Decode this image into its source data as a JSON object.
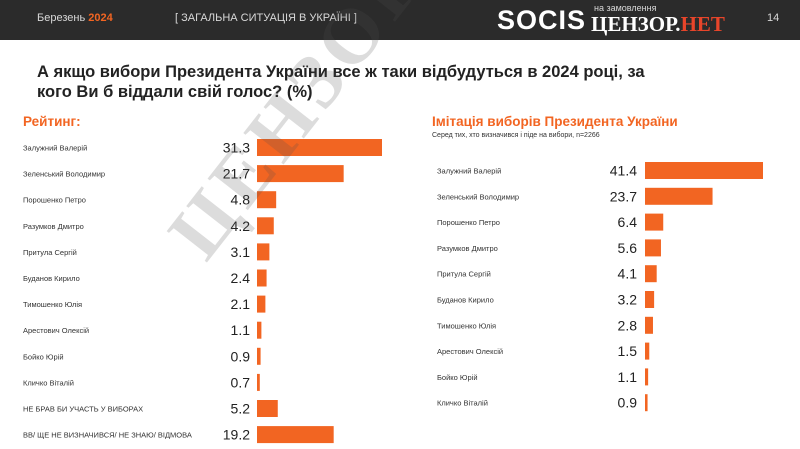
{
  "header": {
    "date_month": "Березень",
    "date_year": "2024",
    "section": "[ ЗАГАЛЬНА СИТУАЦІЯ В УКРАЇНІ ]",
    "brand": "SOCIS",
    "commission_text": "на замовлення",
    "client_main": "ЦЕНЗОР.",
    "client_accent": "НЕТ",
    "page_number": "14"
  },
  "question": "А якщо вибори Президента України все ж таки відбудуться в 2024 році, за кого Ви б віддали свій голос? (%)",
  "watermark": "ЦЕНЗОР.НЕТ",
  "colors": {
    "bar": "#f26522",
    "accent": "#f26522",
    "header_bg": "#2b2b2b"
  },
  "chart_data": [
    {
      "type": "bar",
      "orientation": "horizontal",
      "title": "Рейтинг:",
      "subtitle": "",
      "categories": [
        "Залужний Валерій",
        "Зеленський Володимир",
        "Порошенко Петро",
        "Разумков Дмитро",
        "Притула Сергій",
        "Буданов Кирило",
        "Тимошенко Юлія",
        "Арестович Олексій",
        "Бойко Юрій",
        "Кличко Віталій",
        "НЕ БРАВ БИ УЧАСТЬ У ВИБОРАХ",
        "ВВ/ ЩЕ НЕ ВИЗНАЧИВСЯ/ НЕ ЗНАЮ/ ВІДМОВА"
      ],
      "values": [
        31.3,
        21.7,
        4.8,
        4.2,
        3.1,
        2.4,
        2.1,
        1.1,
        0.9,
        0.7,
        5.2,
        19.2
      ],
      "value_labels": [
        "31.3",
        "21.7",
        "4.8",
        "4.2",
        "3.1",
        "2.4",
        "2.1",
        "1.1",
        "0.9",
        "0.7",
        "5.2",
        "19.2"
      ],
      "xlim": [
        0,
        31.3
      ],
      "grid": false,
      "data_labels": true
    },
    {
      "type": "bar",
      "orientation": "horizontal",
      "title": "Імітація виборів Президента України",
      "subtitle": "Серед тих, хто визначився і піде на вибори, n=2266",
      "categories": [
        "Залужний Валерій",
        "Зеленський Володимир",
        "Порошенко Петро",
        "Разумков Дмитро",
        "Притула Сергій",
        "Буданов Кирило",
        "Тимошенко Юлія",
        "Арестович Олексій",
        "Бойко Юрій",
        "Кличко Віталій"
      ],
      "values": [
        41.4,
        23.7,
        6.4,
        5.6,
        4.1,
        3.2,
        2.8,
        1.5,
        1.1,
        0.9
      ],
      "value_labels": [
        "41.4",
        "23.7",
        "6.4",
        "5.6",
        "4.1",
        "3.2",
        "2.8",
        "1.5",
        "1.1",
        "0.9"
      ],
      "xlim": [
        0,
        41.4
      ],
      "grid": false,
      "data_labels": true
    }
  ]
}
